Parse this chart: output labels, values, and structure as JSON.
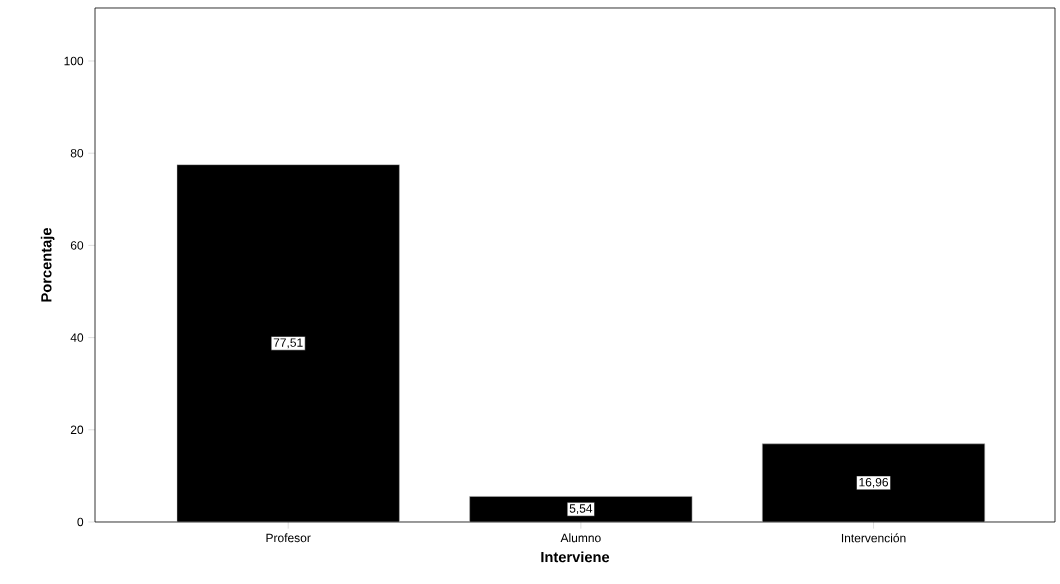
{
  "chart_data": {
    "type": "bar",
    "xlabel": "Interviene",
    "ylabel": "Porcentaje",
    "categories": [
      "Profesor",
      "Alumno",
      "Intervención"
    ],
    "values": [
      77.51,
      5.54,
      16.96
    ],
    "value_labels": [
      "77,51",
      "5,54",
      "16,96"
    ],
    "color": "#000000",
    "ylim": [
      0,
      111.5
    ],
    "yticks": [
      0,
      20,
      40,
      60,
      80,
      100
    ],
    "grid": false
  }
}
